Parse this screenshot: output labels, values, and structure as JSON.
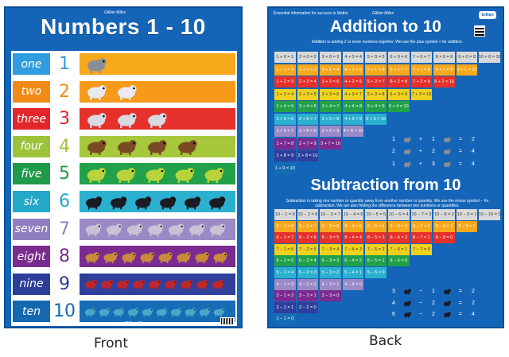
{
  "front": {
    "title": "Numbers 1 - 10",
    "signature": "Gillian Miles",
    "rows": [
      {
        "word": "one",
        "numeral": "1",
        "color": "#2f9de0",
        "numeral_color": "#2f9de0",
        "band": "#f7a81b",
        "count": 1,
        "animal": "koala-icon"
      },
      {
        "word": "two",
        "numeral": "2",
        "color": "#f28a1a",
        "numeral_color": "#f28a1a",
        "band": "#f79a1a",
        "count": 2,
        "animal": "cockatoo-icon"
      },
      {
        "word": "three",
        "numeral": "3",
        "color": "#e2262a",
        "numeral_color": "#e2262a",
        "band": "#e6302b",
        "count": 3,
        "animal": "possum-icon"
      },
      {
        "word": "four",
        "numeral": "4",
        "color": "#9cc33a",
        "numeral_color": "#9cc33a",
        "band": "#a6c83a",
        "count": 4,
        "animal": "platypus-icon"
      },
      {
        "word": "five",
        "numeral": "5",
        "color": "#1f9a49",
        "numeral_color": "#1f9a49",
        "band": "#22a14a",
        "count": 5,
        "animal": "crocodile-icon"
      },
      {
        "word": "six",
        "numeral": "6",
        "color": "#24a8c8",
        "numeral_color": "#24a8c8",
        "band": "#2bb0cf",
        "count": 6,
        "animal": "crow-icon"
      },
      {
        "word": "seven",
        "numeral": "7",
        "color": "#8f7fc0",
        "numeral_color": "#8f7fc0",
        "band": "#9a8ac6",
        "count": 7,
        "animal": "bilby-icon"
      },
      {
        "word": "eight",
        "numeral": "8",
        "color": "#7a2c8e",
        "numeral_color": "#7a2c8e",
        "band": "#7b2b90",
        "count": 8,
        "animal": "kangaroo-icon"
      },
      {
        "word": "nine",
        "numeral": "9",
        "color": "#2c3e9a",
        "numeral_color": "#2c3e9a",
        "band": "#2f3f9c",
        "count": 9,
        "animal": "parrot-icon"
      },
      {
        "word": "ten",
        "numeral": "10",
        "color": "#1468b0",
        "numeral_color": "#1468b0",
        "band": "#166db6",
        "count": 10,
        "animal": "dolphin-icon"
      }
    ]
  },
  "back": {
    "tagline": "Essential information for success in Maths",
    "signature": "Gillian Miles",
    "logo": "Gillian Miles",
    "addition": {
      "title": "Addition to 10",
      "intro": "Addition is adding 2 or more numbers together. We use the plus symbol + for addition.",
      "rows": [
        {
          "color": "#d9d9d9",
          "cells": [
            "1 + 0 = 1",
            "2 + 0 = 2",
            "3 + 0 = 3",
            "4 + 0 = 4",
            "5 + 0 = 5",
            "6 + 0 = 6",
            "7 + 0 = 7",
            "8 + 0 = 8",
            "9 + 0 = 9",
            "10 + 0 = 10"
          ]
        },
        {
          "color": "#f7a81b",
          "cells": [
            "1 + 1 = 2",
            "2 + 1 = 3",
            "3 + 1 = 4",
            "4 + 1 = 5",
            "5 + 1 = 6",
            "6 + 1 = 7",
            "7 + 1 = 8",
            "8 + 1 = 9",
            "9 + 1 = 10"
          ]
        },
        {
          "color": "#e6302b",
          "cells": [
            "1 + 2 = 3",
            "2 + 2 = 4",
            "3 + 2 = 5",
            "4 + 2 = 6",
            "5 + 2 = 7",
            "6 + 2 = 8",
            "7 + 2 = 9",
            "8 + 2 = 10"
          ]
        },
        {
          "color": "#f0d21e",
          "cells": [
            "1 + 3 = 4",
            "2 + 3 = 5",
            "3 + 3 = 6",
            "4 + 3 = 7",
            "5 + 3 = 8",
            "6 + 3 = 9",
            "7 + 3 = 10"
          ]
        },
        {
          "color": "#22a14a",
          "cells": [
            "1 + 4 = 5",
            "2 + 4 = 6",
            "3 + 4 = 7",
            "4 + 4 = 8",
            "5 + 4 = 9",
            "6 + 4 = 10"
          ]
        },
        {
          "color": "#2bb0cf",
          "cells": [
            "1 + 5 = 6",
            "2 + 5 = 7",
            "3 + 5 = 8",
            "4 + 5 = 9",
            "5 + 5 = 10"
          ]
        },
        {
          "color": "#9a8ac6",
          "cells": [
            "1 + 6 = 7",
            "2 + 6 = 8",
            "3 + 6 = 9",
            "4 + 6 = 10"
          ]
        },
        {
          "color": "#7b2b90",
          "cells": [
            "1 + 7 = 8",
            "2 + 7 = 9",
            "3 + 7 = 10"
          ]
        },
        {
          "color": "#2f3f9c",
          "cells": [
            "1 + 8 = 9",
            "2 + 8 = 10"
          ]
        },
        {
          "color": "#166db6",
          "cells": [
            "1 + 9 = 10"
          ]
        }
      ],
      "sums": [
        {
          "a": "1",
          "op": "+",
          "b": "1",
          "eq": "=",
          "r": "2"
        },
        {
          "a": "2",
          "op": "+",
          "b": "2",
          "eq": "=",
          "r": "4"
        },
        {
          "a": "1",
          "op": "+",
          "b": "3",
          "eq": "=",
          "r": "4"
        }
      ]
    },
    "subtraction": {
      "title": "Subtraction from 10",
      "intro": "Subtraction is taking one number or quantity away from another number or quantity. We use the minus symbol − for subtraction. We are also finding the difference between two numbers or quantities.",
      "rows": [
        {
          "color": "#d9d9d9",
          "cells": [
            "10 − 1 = 9",
            "10 − 2 = 8",
            "10 − 3 = 7",
            "10 − 4 = 6",
            "10 − 5 = 5",
            "10 − 6 = 4",
            "10 − 7 = 3",
            "10 − 8 = 2",
            "10 − 9 = 1",
            "10 − 10 = 0"
          ]
        },
        {
          "color": "#f7a81b",
          "cells": [
            "9 − 1 = 8",
            "9 − 2 = 7",
            "9 − 3 = 6",
            "9 − 4 = 5",
            "9 − 5 = 4",
            "9 − 6 = 3",
            "9 − 7 = 2",
            "9 − 8 = 1",
            "9 − 9 = 0"
          ]
        },
        {
          "color": "#e6302b",
          "cells": [
            "8 − 1 = 7",
            "8 − 2 = 6",
            "8 − 3 = 5",
            "8 − 4 = 4",
            "8 − 5 = 3",
            "8 − 6 = 2",
            "8 − 7 = 1",
            "8 − 8 = 0"
          ]
        },
        {
          "color": "#f0d21e",
          "cells": [
            "7 − 1 = 6",
            "7 − 2 = 5",
            "7 − 3 = 4",
            "7 − 4 = 3",
            "7 − 5 = 2",
            "7 − 6 = 1",
            "7 − 7 = 0"
          ]
        },
        {
          "color": "#22a14a",
          "cells": [
            "6 − 1 = 5",
            "6 − 2 = 4",
            "6 − 3 = 3",
            "6 − 4 = 2",
            "6 − 5 = 1",
            "6 − 6 = 0"
          ]
        },
        {
          "color": "#2bb0cf",
          "cells": [
            "5 − 1 = 4",
            "5 − 2 = 3",
            "5 − 3 = 2",
            "5 − 4 = 1",
            "5 − 5 = 0"
          ]
        },
        {
          "color": "#9a8ac6",
          "cells": [
            "4 − 1 = 3",
            "4 − 2 = 2",
            "4 − 3 = 1",
            "4 − 4 = 0"
          ]
        },
        {
          "color": "#7b2b90",
          "cells": [
            "3 − 1 = 2",
            "3 − 2 = 1",
            "3 − 3 = 0"
          ]
        },
        {
          "color": "#2f3f9c",
          "cells": [
            "2 − 1 = 1",
            "2 − 2 = 0"
          ]
        },
        {
          "color": "#166db6",
          "cells": [
            "1 − 1 = 0"
          ]
        }
      ],
      "sums": [
        {
          "a": "3",
          "op": "−",
          "b": "1",
          "eq": "=",
          "r": "2"
        },
        {
          "a": "4",
          "op": "−",
          "b": "2",
          "eq": "=",
          "r": "2"
        },
        {
          "a": "6",
          "op": "−",
          "b": "2",
          "eq": "=",
          "r": "4"
        }
      ]
    }
  },
  "captions": {
    "front": "Front",
    "back": "Back"
  }
}
